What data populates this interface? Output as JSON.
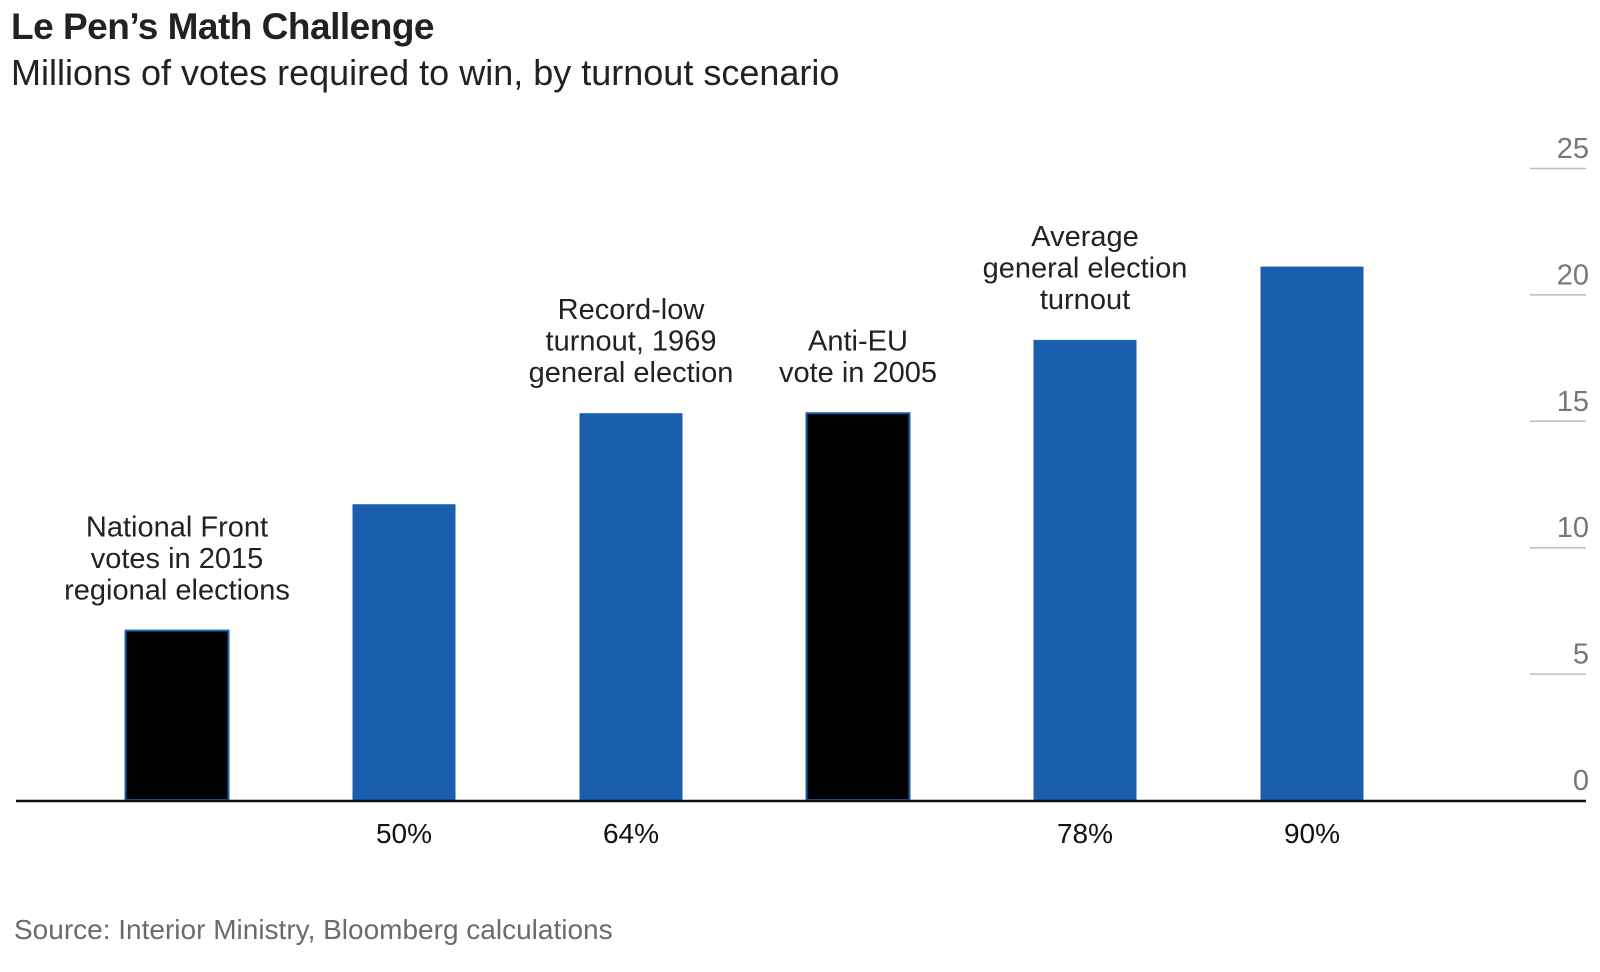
{
  "header": {
    "title": "Le Pen’s Math Challenge",
    "subtitle": "Millions of votes required to win, by turnout scenario"
  },
  "footer": {
    "source": "Source: Interior Ministry, Bloomberg calculations"
  },
  "colors": {
    "scenario_bar": "#1a5fad",
    "reference_bar": "#000000",
    "axis": "#111111",
    "gridline": "#bbbbbb",
    "tick_label": "#777777"
  },
  "chart_data": {
    "type": "bar",
    "title": "Le Pen’s Math Challenge",
    "subtitle": "Millions of votes required to win, by turnout scenario",
    "xlabel": "",
    "ylabel": "",
    "ylim": [
      0,
      25
    ],
    "yticks": [
      0,
      5,
      10,
      15,
      20,
      25
    ],
    "y_axis_position": "right",
    "grid": false,
    "legend": "none",
    "categories": [
      "",
      "50%",
      "64%",
      "",
      "78%",
      "90%"
    ],
    "values": [
      6.7,
      11.7,
      15.3,
      15.3,
      18.2,
      21.1
    ],
    "bar_kind": [
      "reference",
      "scenario",
      "scenario",
      "reference",
      "scenario",
      "scenario"
    ],
    "annotations": [
      {
        "bar": 0,
        "lines": [
          "National Front",
          "votes in 2015",
          "regional elections"
        ]
      },
      {
        "bar": 2,
        "lines": [
          "Record-low",
          "turnout, 1969",
          "general election"
        ]
      },
      {
        "bar": 3,
        "lines": [
          "Anti-EU",
          "vote in 2005"
        ]
      },
      {
        "bar": 4,
        "lines": [
          "Average",
          "general election",
          "turnout"
        ]
      }
    ]
  }
}
